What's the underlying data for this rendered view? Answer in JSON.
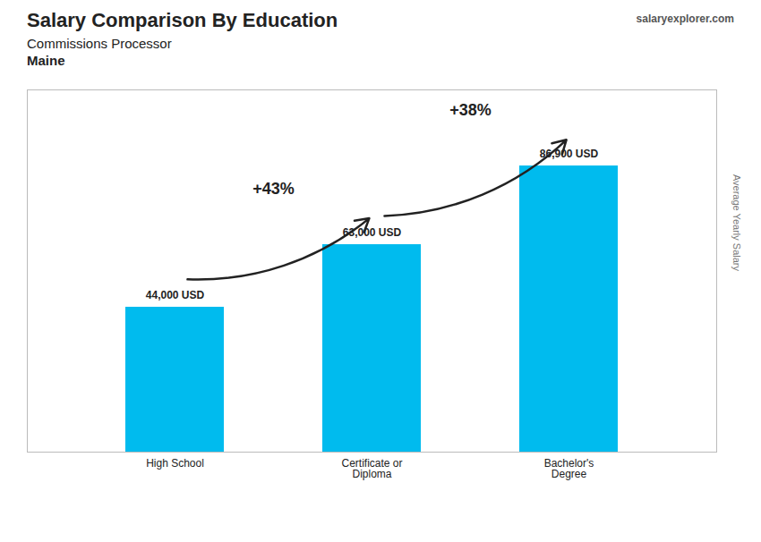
{
  "chart_data": {
    "type": "bar",
    "title": "Salary Comparison By Education",
    "subtitle": "Commissions Processor",
    "location": "Maine",
    "watermark": "salaryexplorer.com",
    "ylabel": "Average Yearly Salary",
    "categories": [
      "High School",
      "Certificate or\nDiploma",
      "Bachelor's\nDegree"
    ],
    "values": [
      44000,
      63000,
      86900
    ],
    "value_labels": [
      "44,000 USD",
      "63,000 USD",
      "86,900 USD"
    ],
    "data_labels": true,
    "color": "#00bbee",
    "ylim": [
      0,
      110000
    ],
    "tick_labels": "x",
    "grid": false,
    "annotations": [
      {
        "text": "+43%",
        "from": "High School",
        "to": "Certificate or\nDiploma"
      },
      {
        "text": "+38%",
        "from": "Certificate or\nDiploma",
        "to": "Bachelor's\nDegree"
      }
    ]
  }
}
